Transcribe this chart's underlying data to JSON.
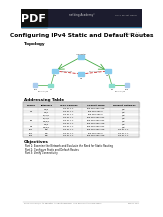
{
  "title": "Configuring IPv4 Static and Default Routes",
  "topology_label": "Topology",
  "table_title": "Addressing Table",
  "table_headers": [
    "Device",
    "Interface",
    "IPv4 Address",
    "Subnet Mask",
    "Default Gateway"
  ],
  "table_rows": [
    [
      "",
      "G0/0",
      "172.31.1.1",
      "255.255.255.128",
      "N/A"
    ],
    [
      "R1",
      "G0/1",
      "172.31.1.1",
      "255.255.255.0",
      "N/A"
    ],
    [
      "",
      "S0/0/0",
      "172.31.1.1",
      "255.255.255.0",
      "N/A"
    ],
    [
      "",
      "S0/0/0",
      "172.31.1.1",
      "255.255.255.252",
      "N/A"
    ],
    [
      "R2",
      "G0/0/1",
      "172.31.1.1",
      "255.255.255.252",
      "N/A"
    ],
    [
      "",
      "G0/0",
      "172.31.1.1",
      "255.255.255.128",
      "N/A"
    ],
    [
      "R3",
      "G0/0/1",
      "172.31.1.1",
      "255.255.255.252",
      "N/A"
    ],
    [
      "PC1",
      "NIC",
      "172.31.1.1",
      "255.255.255.128",
      "172.31.1.1"
    ],
    [
      "PC2",
      "NIC",
      "172.31.1.1",
      "255.255.255.0",
      "172.31.1.1"
    ],
    [
      "PC3",
      "NIC",
      "172.31.1.1",
      "255.255.255.128",
      "172.31.1.1"
    ]
  ],
  "objectives_title": "Objectives",
  "objectives": [
    "Part 1: Examine the Network and Evaluate the Need for Static Routing",
    "Part 2: Configure Static and Default Routes",
    "Part 3: Verify Connectivity"
  ],
  "footer_left": "2014 Cisco and/or its affiliates. All rights reserved.  This document is Cisco Public.",
  "footer_right": "Page 1 of 6",
  "bg_color": "#ffffff",
  "header_bg": "#1a1a2e",
  "table_header_bg": "#d0d0d0",
  "green_line": "#44aa44",
  "red_line": "#cc3333"
}
